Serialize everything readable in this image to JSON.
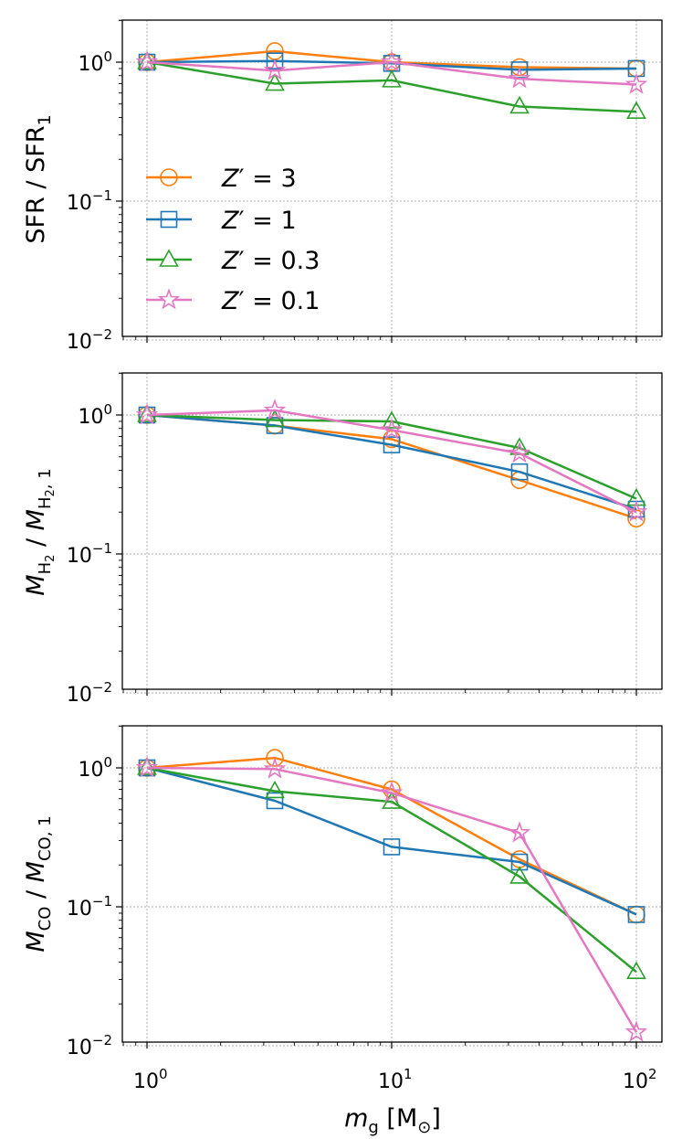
{
  "chart_data": [
    {
      "type": "line",
      "panel": "top",
      "x": [
        1,
        3.33,
        10,
        33.3,
        100
      ],
      "xscale": "log",
      "yscale": "log",
      "xlim": [
        0.75,
        130
      ],
      "ylim": [
        0.01,
        2
      ],
      "ylabel": "SFR / SFR₁",
      "xlabel": "",
      "grid": true,
      "series": [
        {
          "name": "Z' = 3",
          "marker": "circle",
          "color": "#ff7f0e",
          "values": [
            1.0,
            1.2,
            1.0,
            0.92,
            0.9
          ]
        },
        {
          "name": "Z' = 1",
          "marker": "square",
          "color": "#1f77b4",
          "values": [
            1.0,
            1.02,
            0.98,
            0.88,
            0.9
          ]
        },
        {
          "name": "Z' = 0.3",
          "marker": "triangle",
          "color": "#2ca02c",
          "values": [
            1.0,
            0.7,
            0.74,
            0.48,
            0.44
          ]
        },
        {
          "name": "Z' = 0.1",
          "marker": "star",
          "color": "#e377c2",
          "values": [
            1.0,
            0.87,
            1.0,
            0.76,
            0.69
          ]
        }
      ]
    },
    {
      "type": "line",
      "panel": "middle",
      "x": [
        1,
        3.33,
        10,
        33.3,
        100
      ],
      "xscale": "log",
      "yscale": "log",
      "xlim": [
        0.75,
        130
      ],
      "ylim": [
        0.01,
        2
      ],
      "ylabel": "M_H2 / M_H2,1",
      "xlabel": "",
      "grid": true,
      "series": [
        {
          "name": "Z' = 3",
          "marker": "circle",
          "color": "#ff7f0e",
          "values": [
            1.0,
            0.84,
            0.67,
            0.34,
            0.18
          ]
        },
        {
          "name": "Z' = 1",
          "marker": "square",
          "color": "#1f77b4",
          "values": [
            1.0,
            0.84,
            0.61,
            0.39,
            0.21
          ]
        },
        {
          "name": "Z' = 0.3",
          "marker": "triangle",
          "color": "#2ca02c",
          "values": [
            1.0,
            0.92,
            0.9,
            0.58,
            0.25
          ]
        },
        {
          "name": "Z' = 0.1",
          "marker": "star",
          "color": "#e377c2",
          "values": [
            1.0,
            1.08,
            0.78,
            0.53,
            0.2
          ]
        }
      ]
    },
    {
      "type": "line",
      "panel": "bottom",
      "x": [
        1,
        3.33,
        10,
        33.3,
        100
      ],
      "xscale": "log",
      "yscale": "log",
      "xlim": [
        0.75,
        130
      ],
      "ylim": [
        0.01,
        2
      ],
      "ylabel": "M_CO / M_CO,1",
      "xlabel": "m_g [M_⊙]",
      "grid": true,
      "series": [
        {
          "name": "Z' = 3",
          "marker": "circle",
          "color": "#ff7f0e",
          "values": [
            1.0,
            1.18,
            0.7,
            0.22,
            0.088
          ]
        },
        {
          "name": "Z' = 1",
          "marker": "square",
          "color": "#1f77b4",
          "values": [
            1.0,
            0.58,
            0.27,
            0.21,
            0.088
          ]
        },
        {
          "name": "Z' = 0.3",
          "marker": "triangle",
          "color": "#2ca02c",
          "values": [
            1.0,
            0.68,
            0.57,
            0.165,
            0.034
          ]
        },
        {
          "name": "Z' = 0.1",
          "marker": "star",
          "color": "#e377c2",
          "values": [
            1.0,
            0.98,
            0.66,
            0.34,
            0.0125
          ]
        }
      ]
    }
  ],
  "legend": {
    "location": "lower-left of top panel",
    "entries": [
      {
        "prefix": "Z",
        "prime": "′",
        "eq": " = ",
        "value": "3"
      },
      {
        "prefix": "Z",
        "prime": "′",
        "eq": " = ",
        "value": "1"
      },
      {
        "prefix": "Z",
        "prime": "′",
        "eq": " = ",
        "value": "0.3"
      },
      {
        "prefix": "Z",
        "prime": "′",
        "eq": " = ",
        "value": "0.1"
      }
    ]
  },
  "ytick_labels": [
    {
      "base": "10",
      "exp": "0"
    },
    {
      "base": "10",
      "exp": "−1"
    },
    {
      "base": "10",
      "exp": "−2"
    }
  ],
  "xtick_labels": [
    {
      "base": "10",
      "exp": "0"
    },
    {
      "base": "10",
      "exp": "1"
    },
    {
      "base": "10",
      "exp": "2"
    }
  ],
  "labels": {
    "top_ylabel": "SFR / SFR",
    "top_ylabel_sub": "1",
    "mid_ylabel_M1": "M",
    "mid_ylabel_sub1": "H",
    "mid_ylabel_subsub1": "2",
    "mid_ylabel_sep": " / ",
    "mid_ylabel_M2": "M",
    "mid_ylabel_sub2": "H",
    "mid_ylabel_subsub2": "2",
    "mid_ylabel_tail": ", 1",
    "bot_ylabel_M1": "M",
    "bot_ylabel_sub1": "CO",
    "bot_ylabel_sep": " / ",
    "bot_ylabel_M2": "M",
    "bot_ylabel_sub2": "CO, 1",
    "xlabel_m": "m",
    "xlabel_sub": "g",
    "xlabel_unit_open": " [M",
    "xlabel_unit_sun": "⊙",
    "xlabel_unit_close": "]"
  }
}
